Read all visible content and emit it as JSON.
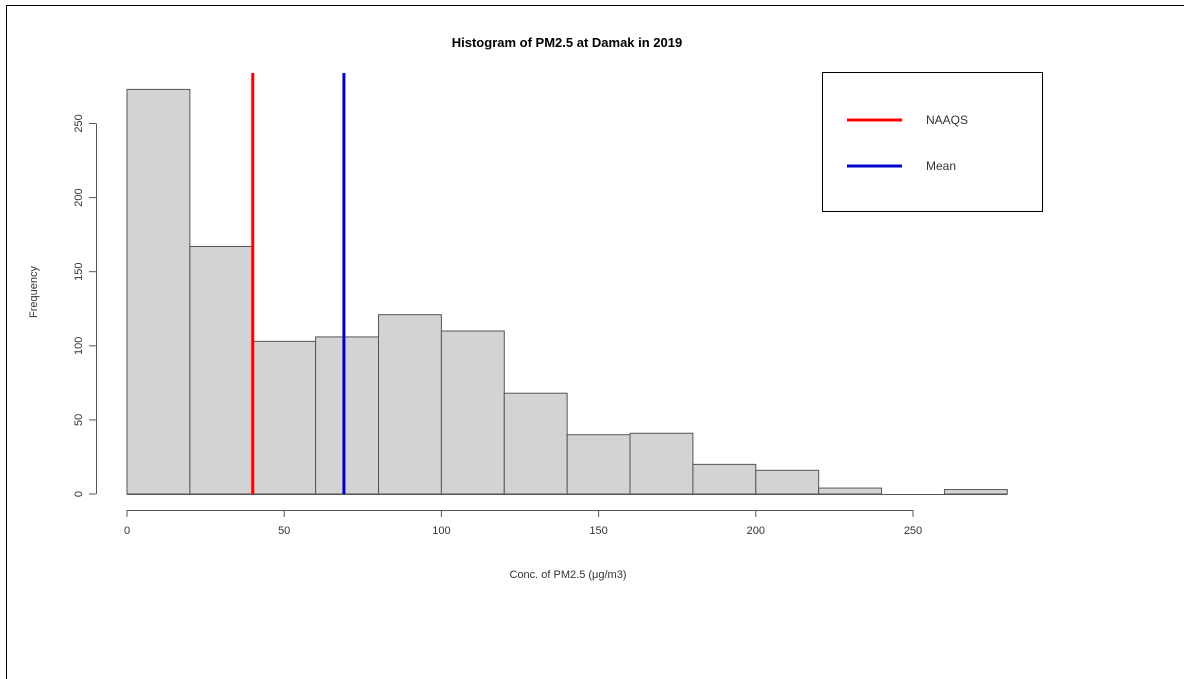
{
  "chart_data": {
    "type": "bar",
    "title": "Histogram of PM2.5 at Damak in 2019",
    "xlabel": "Conc. of PM2.5 (μg/m3)",
    "ylabel": "Frequency",
    "xlim": [
      0,
      280
    ],
    "ylim": [
      0,
      280
    ],
    "xticks": [
      0,
      50,
      100,
      150,
      200,
      250
    ],
    "yticks": [
      0,
      50,
      100,
      150,
      200,
      250
    ],
    "bins": [
      {
        "x0": 0,
        "x1": 20,
        "count": 273
      },
      {
        "x0": 20,
        "x1": 40,
        "count": 167
      },
      {
        "x0": 40,
        "x1": 60,
        "count": 103
      },
      {
        "x0": 60,
        "x1": 80,
        "count": 106
      },
      {
        "x0": 80,
        "x1": 100,
        "count": 121
      },
      {
        "x0": 100,
        "x1": 120,
        "count": 110
      },
      {
        "x0": 120,
        "x1": 140,
        "count": 68
      },
      {
        "x0": 140,
        "x1": 160,
        "count": 40
      },
      {
        "x0": 160,
        "x1": 180,
        "count": 41
      },
      {
        "x0": 180,
        "x1": 200,
        "count": 20
      },
      {
        "x0": 200,
        "x1": 220,
        "count": 16
      },
      {
        "x0": 220,
        "x1": 240,
        "count": 4
      },
      {
        "x0": 240,
        "x1": 260,
        "count": 0
      },
      {
        "x0": 260,
        "x1": 280,
        "count": 3
      }
    ],
    "reference_lines": [
      {
        "name": "NAAQS",
        "x": 40,
        "color": "#ff0000"
      },
      {
        "name": "Mean",
        "x": 69,
        "color": "#0000cc"
      }
    ],
    "bar_color": "#d3d3d3",
    "legend_position": "top-right",
    "grid": false
  }
}
